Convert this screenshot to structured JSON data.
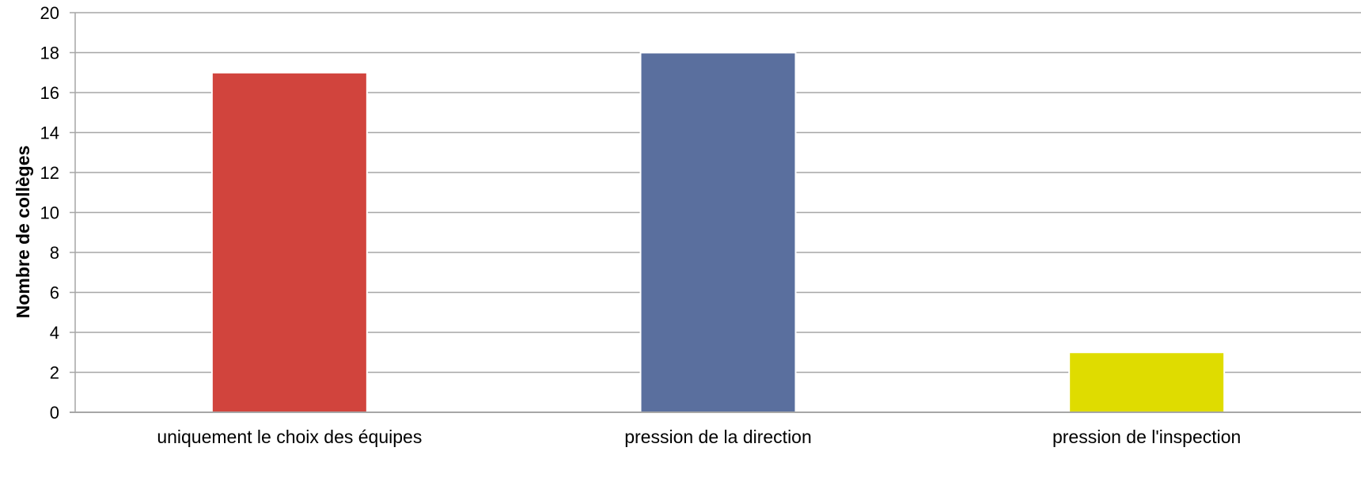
{
  "chart_data": {
    "type": "bar",
    "title": "",
    "xlabel": "",
    "ylabel": "Nombre de collèges",
    "categories": [
      "uniquement le choix des équipes",
      "pression de la direction",
      "pression de l'inspection"
    ],
    "values": [
      17,
      18,
      3
    ],
    "bar_colors": [
      "#d1443d",
      "#5a6f9e",
      "#dfdc00"
    ],
    "ylim": [
      0,
      20
    ],
    "yticks": [
      "0",
      "2",
      "4",
      "6",
      "8",
      "10",
      "12",
      "14",
      "16",
      "18",
      "20"
    ],
    "grid": true,
    "grid_color": "#a6a6a6",
    "legend": "none"
  }
}
